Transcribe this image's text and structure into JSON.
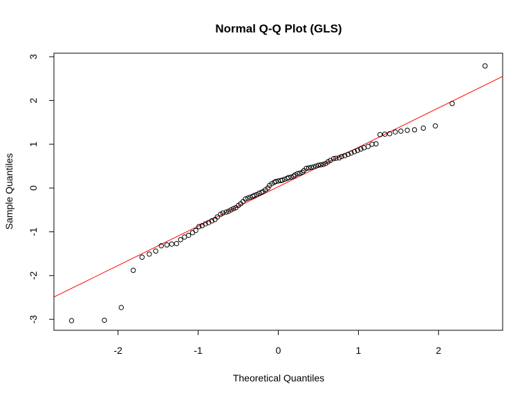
{
  "chart_data": {
    "type": "scatter",
    "title": "Normal Q-Q Plot (GLS)",
    "xlabel": "Theoretical Quantiles",
    "ylabel": "Sample Quantiles",
    "xlim": [
      -2.8,
      2.8
    ],
    "ylim": [
      -3.25,
      3.08
    ],
    "xticks": [
      -2,
      -1,
      0,
      1,
      2
    ],
    "xtick_labels": [
      "-2",
      "-1",
      "0",
      "1",
      "2"
    ],
    "yticks": [
      -3,
      -2,
      -1,
      0,
      1,
      2,
      3
    ],
    "ytick_labels": [
      "-3",
      "-2",
      "-1",
      "0",
      "1",
      "2",
      "3"
    ],
    "grid": false,
    "legend": "none",
    "point_color": "#000000",
    "line_color": "#ff0000",
    "reference_line": {
      "intercept": 0.03,
      "slope": 0.9
    },
    "points": [
      [
        -2.58,
        -3.03
      ],
      [
        -2.17,
        -3.02
      ],
      [
        -1.96,
        -2.73
      ],
      [
        -1.81,
        -1.88
      ],
      [
        -1.7,
        -1.58
      ],
      [
        -1.61,
        -1.51
      ],
      [
        -1.53,
        -1.44
      ],
      [
        -1.46,
        -1.32
      ],
      [
        -1.39,
        -1.3
      ],
      [
        -1.33,
        -1.28
      ],
      [
        -1.27,
        -1.27
      ],
      [
        -1.22,
        -1.18
      ],
      [
        -1.17,
        -1.12
      ],
      [
        -1.12,
        -1.08
      ],
      [
        -1.07,
        -1.02
      ],
      [
        -1.03,
        -0.97
      ],
      [
        -0.99,
        -0.88
      ],
      [
        -0.95,
        -0.86
      ],
      [
        -0.91,
        -0.82
      ],
      [
        -0.87,
        -0.79
      ],
      [
        -0.83,
        -0.75
      ],
      [
        -0.79,
        -0.72
      ],
      [
        -0.76,
        -0.66
      ],
      [
        -0.72,
        -0.6
      ],
      [
        -0.69,
        -0.57
      ],
      [
        -0.65,
        -0.55
      ],
      [
        -0.62,
        -0.53
      ],
      [
        -0.59,
        -0.5
      ],
      [
        -0.56,
        -0.47
      ],
      [
        -0.53,
        -0.45
      ],
      [
        -0.5,
        -0.4
      ],
      [
        -0.47,
        -0.36
      ],
      [
        -0.44,
        -0.31
      ],
      [
        -0.41,
        -0.25
      ],
      [
        -0.38,
        -0.23
      ],
      [
        -0.35,
        -0.21
      ],
      [
        -0.32,
        -0.19
      ],
      [
        -0.3,
        -0.17
      ],
      [
        -0.27,
        -0.15
      ],
      [
        -0.24,
        -0.12
      ],
      [
        -0.21,
        -0.1
      ],
      [
        -0.19,
        -0.08
      ],
      [
        -0.16,
        -0.04
      ],
      [
        -0.13,
        0.0
      ],
      [
        -0.11,
        0.06
      ],
      [
        -0.08,
        0.1
      ],
      [
        -0.05,
        0.13
      ],
      [
        -0.03,
        0.15
      ],
      [
        0.0,
        0.16
      ],
      [
        0.03,
        0.17
      ],
      [
        0.05,
        0.18
      ],
      [
        0.08,
        0.2
      ],
      [
        0.11,
        0.22
      ],
      [
        0.13,
        0.24
      ],
      [
        0.16,
        0.25
      ],
      [
        0.19,
        0.27
      ],
      [
        0.21,
        0.3
      ],
      [
        0.24,
        0.33
      ],
      [
        0.27,
        0.34
      ],
      [
        0.3,
        0.36
      ],
      [
        0.32,
        0.4
      ],
      [
        0.35,
        0.45
      ],
      [
        0.38,
        0.46
      ],
      [
        0.41,
        0.47
      ],
      [
        0.44,
        0.48
      ],
      [
        0.47,
        0.5
      ],
      [
        0.5,
        0.52
      ],
      [
        0.53,
        0.53
      ],
      [
        0.56,
        0.54
      ],
      [
        0.59,
        0.56
      ],
      [
        0.62,
        0.6
      ],
      [
        0.65,
        0.63
      ],
      [
        0.69,
        0.67
      ],
      [
        0.72,
        0.68
      ],
      [
        0.76,
        0.69
      ],
      [
        0.79,
        0.72
      ],
      [
        0.83,
        0.74
      ],
      [
        0.87,
        0.77
      ],
      [
        0.91,
        0.8
      ],
      [
        0.95,
        0.83
      ],
      [
        0.99,
        0.86
      ],
      [
        1.03,
        0.89
      ],
      [
        1.07,
        0.92
      ],
      [
        1.12,
        0.95
      ],
      [
        1.17,
        1.0
      ],
      [
        1.22,
        1.01
      ],
      [
        1.27,
        1.22
      ],
      [
        1.33,
        1.23
      ],
      [
        1.39,
        1.24
      ],
      [
        1.46,
        1.28
      ],
      [
        1.53,
        1.3
      ],
      [
        1.61,
        1.32
      ],
      [
        1.7,
        1.33
      ],
      [
        1.81,
        1.37
      ],
      [
        1.96,
        1.42
      ],
      [
        2.17,
        1.93
      ],
      [
        2.58,
        2.79
      ]
    ]
  }
}
